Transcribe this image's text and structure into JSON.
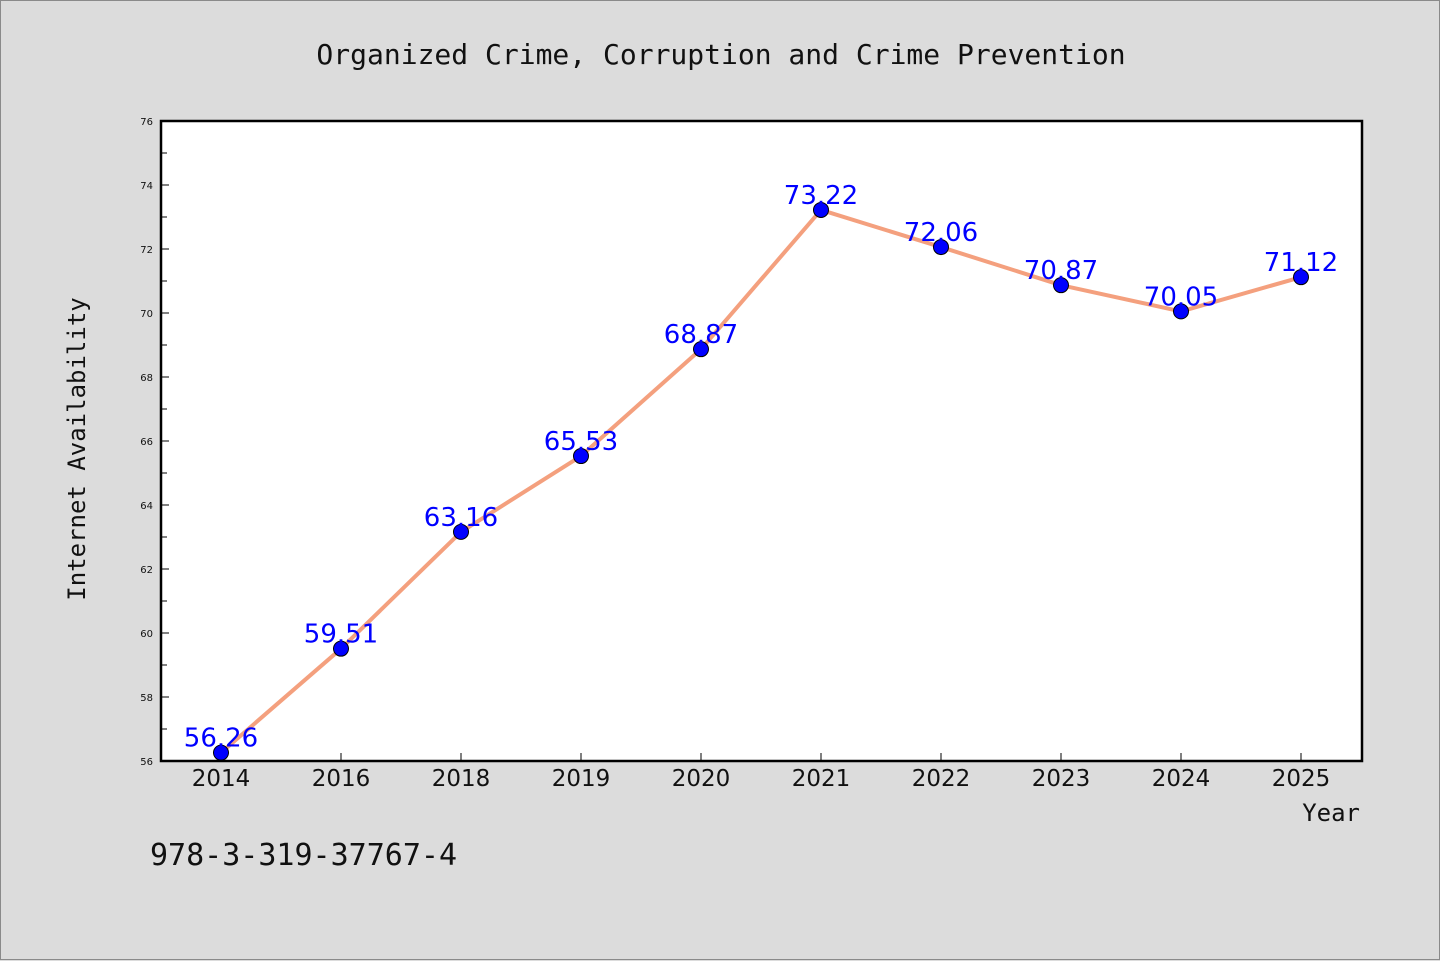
{
  "chart_data": {
    "type": "line",
    "title": "Organized Crime, Corruption and Crime Prevention",
    "xlabel": "Year",
    "ylabel": "Internet Availability",
    "categories": [
      "2014",
      "2016",
      "2018",
      "2019",
      "2020",
      "2021",
      "2022",
      "2023",
      "2024",
      "2025"
    ],
    "series": [
      {
        "values": [
          56.26,
          59.51,
          63.16,
          65.53,
          68.87,
          73.22,
          72.06,
          70.87,
          70.05,
          71.12
        ],
        "labels": [
          "56.26",
          "59.51",
          "63.16",
          "65.53",
          "68.87",
          "73.22",
          "72.06",
          "70.87",
          "70.05",
          "71.12"
        ],
        "line_color": "#f4a07e",
        "marker_color": "#0000ff"
      }
    ],
    "ylim": [
      56,
      76
    ],
    "yticks": [
      "56",
      "58",
      "60",
      "62",
      "64",
      "66",
      "68",
      "70",
      "72",
      "74",
      "76"
    ],
    "grid": false,
    "legend": "none",
    "background_color": "#dcdcdc",
    "plot_background": "#ffffff"
  },
  "footer": {
    "isbn": "978-3-319-37767-4"
  }
}
